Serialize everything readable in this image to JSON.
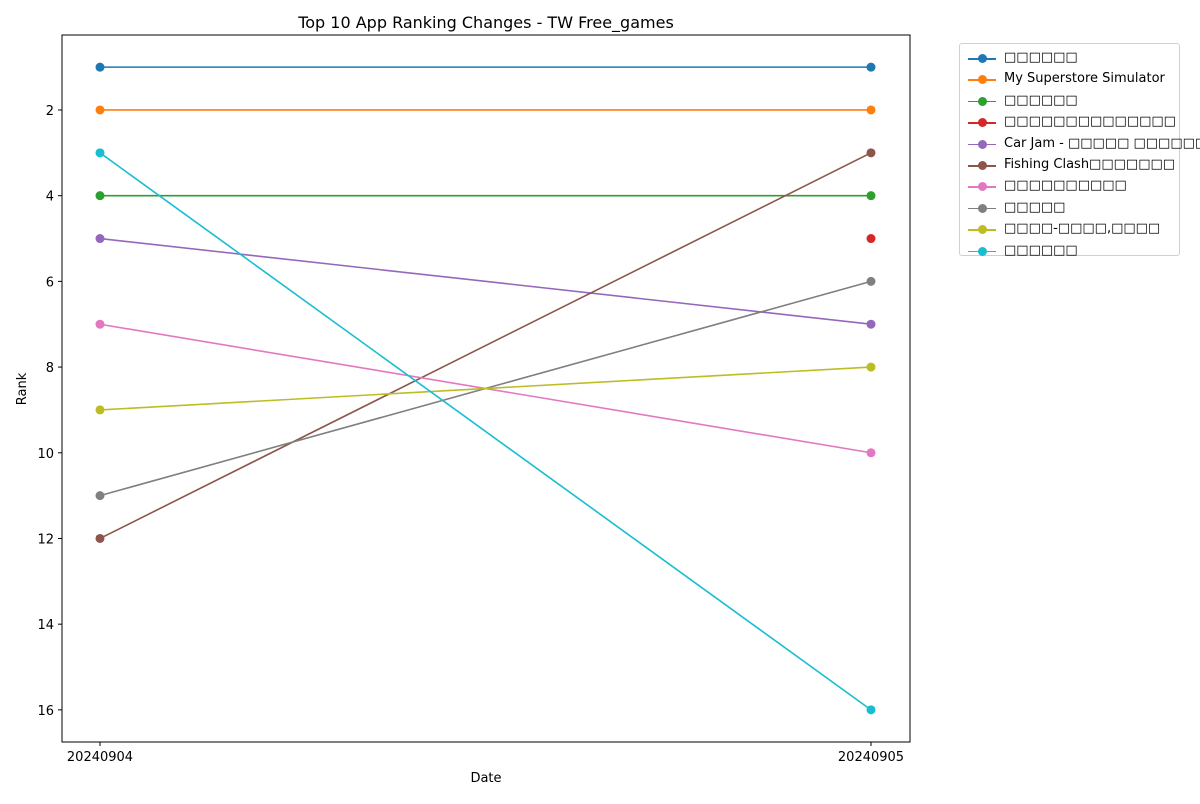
{
  "chart_data": {
    "type": "line",
    "title": "Top 10 App Ranking Changes - TW Free_games",
    "xlabel": "Date",
    "ylabel": "Rank",
    "categories": [
      "20240904",
      "20240905"
    ],
    "ylim": [
      16.75,
      0.25
    ],
    "y_inverted": true,
    "yticks": [
      2,
      4,
      6,
      8,
      10,
      12,
      14,
      16
    ],
    "grid": false,
    "legend_position": "outside upper right",
    "series": [
      {
        "name": "□□□□□□",
        "color": "#1f77b4",
        "values": [
          1,
          1
        ]
      },
      {
        "name": "My Superstore Simulator",
        "color": "#ff7f0e",
        "values": [
          2,
          2
        ]
      },
      {
        "name": "□□□□□□",
        "color": "#2ca02c",
        "values": [
          4,
          4
        ]
      },
      {
        "name": "□□□□□□□□□□□□□□",
        "color": "#d62728",
        "values": [
          null,
          5
        ]
      },
      {
        "name": "Car Jam - □□□□□ □□□□□□",
        "color": "#9467bd",
        "values": [
          5,
          7
        ]
      },
      {
        "name": "Fishing Clash□□□□□□□",
        "color": "#8c564b",
        "values": [
          12,
          3
        ]
      },
      {
        "name": "□□□□□□□□□□",
        "color": "#e377c2",
        "values": [
          7,
          10
        ]
      },
      {
        "name": "□□□□□",
        "color": "#7f7f7f",
        "values": [
          11,
          6
        ]
      },
      {
        "name": "□□□□-□□□□,□□□□",
        "color": "#bcbd22",
        "values": [
          9,
          8
        ]
      },
      {
        "name": "□□□□□□",
        "color": "#17becf",
        "values": [
          3,
          16
        ]
      }
    ]
  }
}
